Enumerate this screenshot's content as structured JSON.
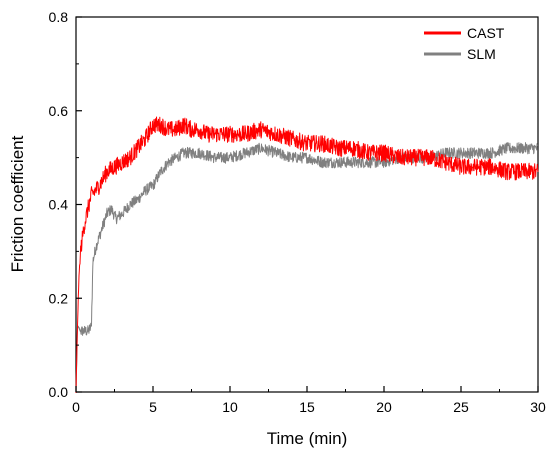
{
  "chart_data": {
    "type": "line",
    "xlabel": "Time (min)",
    "ylabel": "Friction coefficient",
    "xlim": [
      0,
      30
    ],
    "ylim": [
      0.0,
      0.8
    ],
    "x_ticks": [
      0,
      5,
      10,
      15,
      20,
      25,
      30
    ],
    "x_tick_labels": [
      "0",
      "5",
      "10",
      "15",
      "20",
      "25",
      "30"
    ],
    "y_ticks": [
      0.0,
      0.2,
      0.4,
      0.6,
      0.8
    ],
    "y_tick_labels": [
      "0.0",
      "0.2",
      "0.4",
      "0.6",
      "0.8"
    ],
    "grid": false,
    "legend_position": "top-right",
    "series": [
      {
        "name": "CAST",
        "color": "#ff0000",
        "x": [
          0,
          0.1,
          0.2,
          0.3,
          0.5,
          0.7,
          1.0,
          1.5,
          2,
          2.5,
          3,
          3.5,
          4,
          4.5,
          5,
          5.5,
          6,
          6.5,
          7,
          7.5,
          8,
          8.5,
          9,
          9.5,
          10,
          11,
          12,
          13,
          14,
          15,
          16,
          17,
          18,
          19,
          20,
          21,
          22,
          23,
          24,
          25,
          26,
          27,
          28,
          29,
          30
        ],
        "y": [
          0.0,
          0.15,
          0.25,
          0.3,
          0.35,
          0.38,
          0.42,
          0.44,
          0.47,
          0.48,
          0.49,
          0.5,
          0.52,
          0.54,
          0.57,
          0.57,
          0.56,
          0.56,
          0.57,
          0.56,
          0.56,
          0.55,
          0.55,
          0.55,
          0.55,
          0.55,
          0.56,
          0.55,
          0.54,
          0.53,
          0.53,
          0.52,
          0.52,
          0.51,
          0.51,
          0.5,
          0.5,
          0.5,
          0.49,
          0.48,
          0.48,
          0.48,
          0.47,
          0.47,
          0.47
        ]
      },
      {
        "name": "SLM",
        "color": "#808080",
        "x": [
          0,
          0.1,
          0.3,
          0.5,
          0.8,
          1.0,
          1.1,
          1.3,
          1.6,
          2.0,
          2.3,
          2.6,
          3.0,
          3.5,
          4.0,
          4.5,
          5.0,
          5.5,
          6.0,
          6.5,
          7.0,
          8.0,
          9.0,
          10,
          11,
          12,
          13,
          14,
          15,
          16,
          17,
          18,
          19,
          20,
          21,
          22,
          23,
          24,
          25,
          26,
          27,
          28,
          29,
          30
        ],
        "y": [
          0.0,
          0.14,
          0.13,
          0.13,
          0.13,
          0.14,
          0.28,
          0.31,
          0.34,
          0.38,
          0.39,
          0.37,
          0.38,
          0.4,
          0.41,
          0.43,
          0.44,
          0.47,
          0.49,
          0.5,
          0.51,
          0.51,
          0.5,
          0.5,
          0.51,
          0.52,
          0.51,
          0.5,
          0.5,
          0.49,
          0.49,
          0.49,
          0.49,
          0.49,
          0.5,
          0.5,
          0.5,
          0.51,
          0.51,
          0.51,
          0.51,
          0.52,
          0.52,
          0.52
        ]
      }
    ]
  }
}
